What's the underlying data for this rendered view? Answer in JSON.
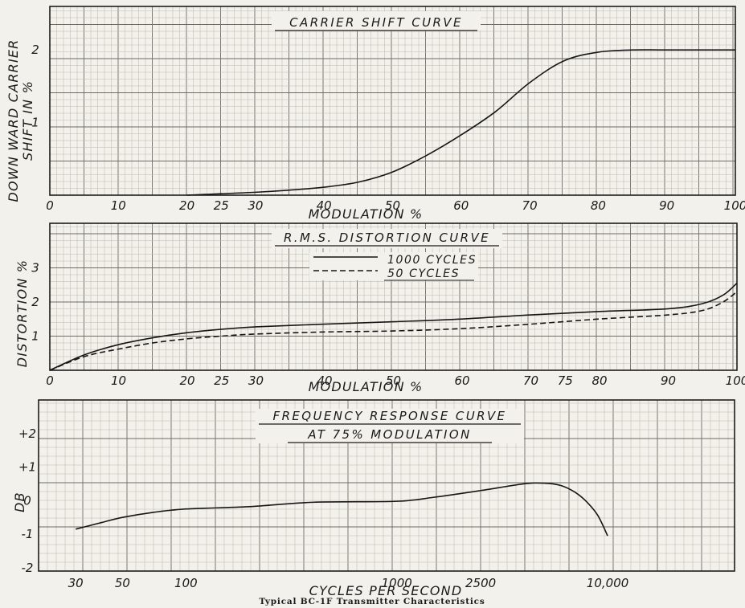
{
  "caption": "Typical BC-1F Transmitter Characteristics",
  "chart_data": [
    {
      "type": "line",
      "title": "CARRIER SHIFT CURVE",
      "xlabel": "MODULATION %",
      "ylabel": "DOWN WARD CARRIER SHIFT IN %",
      "xlim": [
        0,
        100
      ],
      "ylim": [
        0,
        2.6
      ],
      "grid": true,
      "x_ticks": [
        {
          "value": 0,
          "label": "0"
        },
        {
          "value": 10,
          "label": "10"
        },
        {
          "value": 20,
          "label": "20"
        },
        {
          "value": 25,
          "label": "25"
        },
        {
          "value": 30,
          "label": "30"
        },
        {
          "value": 40,
          "label": "40"
        },
        {
          "value": 50,
          "label": "50"
        },
        {
          "value": 60,
          "label": "60"
        },
        {
          "value": 70,
          "label": "70"
        },
        {
          "value": 80,
          "label": "80"
        },
        {
          "value": 90,
          "label": "90"
        },
        {
          "value": 100,
          "label": "100"
        }
      ],
      "y_ticks": [
        {
          "value": 1,
          "label": "1"
        },
        {
          "value": 2,
          "label": "2"
        }
      ],
      "series": [
        {
          "name": "",
          "x": [
            20,
            25,
            30,
            35,
            40,
            45,
            50,
            55,
            60,
            65,
            70,
            75,
            80,
            85,
            90,
            100
          ],
          "y": [
            0.0,
            0.02,
            0.04,
            0.07,
            0.11,
            0.18,
            0.32,
            0.55,
            0.83,
            1.15,
            1.55,
            1.85,
            1.97,
            2.0,
            2.0,
            2.0
          ]
        }
      ]
    },
    {
      "type": "line",
      "title": "R.M.S. DISTORTION CURVE",
      "xlabel": "MODULATION %",
      "ylabel": "DISTORTION %",
      "xlim": [
        0,
        100
      ],
      "ylim": [
        0,
        4.3
      ],
      "grid": true,
      "legend": "top-center",
      "x_ticks": [
        {
          "value": 0,
          "label": "0"
        },
        {
          "value": 10,
          "label": "10"
        },
        {
          "value": 20,
          "label": "20"
        },
        {
          "value": 25,
          "label": "25"
        },
        {
          "value": 30,
          "label": "30"
        },
        {
          "value": 40,
          "label": "40"
        },
        {
          "value": 50,
          "label": "50"
        },
        {
          "value": 60,
          "label": "60"
        },
        {
          "value": 70,
          "label": "70"
        },
        {
          "value": 75,
          "label": "75"
        },
        {
          "value": 80,
          "label": "80"
        },
        {
          "value": 90,
          "label": "90"
        },
        {
          "value": 100,
          "label": "100"
        }
      ],
      "y_ticks": [
        {
          "value": 1,
          "label": "1"
        },
        {
          "value": 2,
          "label": "2"
        },
        {
          "value": 3,
          "label": "3"
        }
      ],
      "series": [
        {
          "name": "1000 CYCLES",
          "style": "solid",
          "x": [
            0,
            5,
            10,
            15,
            20,
            25,
            30,
            40,
            50,
            60,
            70,
            80,
            90,
            95,
            98,
            100
          ],
          "y": [
            0.0,
            0.45,
            0.75,
            0.95,
            1.1,
            1.2,
            1.27,
            1.35,
            1.42,
            1.5,
            1.62,
            1.72,
            1.8,
            1.95,
            2.2,
            2.55
          ]
        },
        {
          "name": "50 CYCLES",
          "style": "dashed",
          "x": [
            0,
            5,
            10,
            15,
            20,
            25,
            30,
            40,
            50,
            60,
            70,
            80,
            90,
            95,
            98,
            100
          ],
          "y": [
            0.0,
            0.4,
            0.62,
            0.8,
            0.92,
            1.0,
            1.06,
            1.12,
            1.15,
            1.22,
            1.35,
            1.5,
            1.62,
            1.75,
            2.0,
            2.3
          ]
        }
      ]
    },
    {
      "type": "line",
      "title": "FREQUENCY RESPONSE CURVE",
      "subtitle": "AT 75% MODULATION",
      "xlabel": "CYCLES PER SECOND",
      "ylabel": "DB",
      "xscale": "log",
      "xlim": [
        20,
        40000
      ],
      "ylim": [
        -2.1,
        3.0
      ],
      "grid": true,
      "x_ticks": [
        {
          "value": 30,
          "label": "30"
        },
        {
          "value": 50,
          "label": "50"
        },
        {
          "value": 100,
          "label": "100"
        },
        {
          "value": 1000,
          "label": "1000"
        },
        {
          "value": 2500,
          "label": "2500"
        },
        {
          "value": 10000,
          "label": "10,000"
        }
      ],
      "y_ticks": [
        {
          "value": 2,
          "label": "+2"
        },
        {
          "value": 1,
          "label": "+1"
        },
        {
          "value": 0,
          "label": "0"
        },
        {
          "value": -1,
          "label": "-1"
        },
        {
          "value": -2,
          "label": "-2"
        }
      ],
      "series": [
        {
          "name": "",
          "x": [
            30,
            40,
            50,
            70,
            100,
            200,
            400,
            1000,
            1500,
            2500,
            4000,
            5000,
            6000,
            7000,
            8000,
            9000,
            10000
          ],
          "y": [
            -0.85,
            -0.65,
            -0.5,
            -0.35,
            -0.25,
            -0.18,
            -0.05,
            -0.02,
            0.1,
            0.3,
            0.5,
            0.52,
            0.45,
            0.25,
            -0.05,
            -0.45,
            -1.05
          ]
        }
      ]
    }
  ]
}
